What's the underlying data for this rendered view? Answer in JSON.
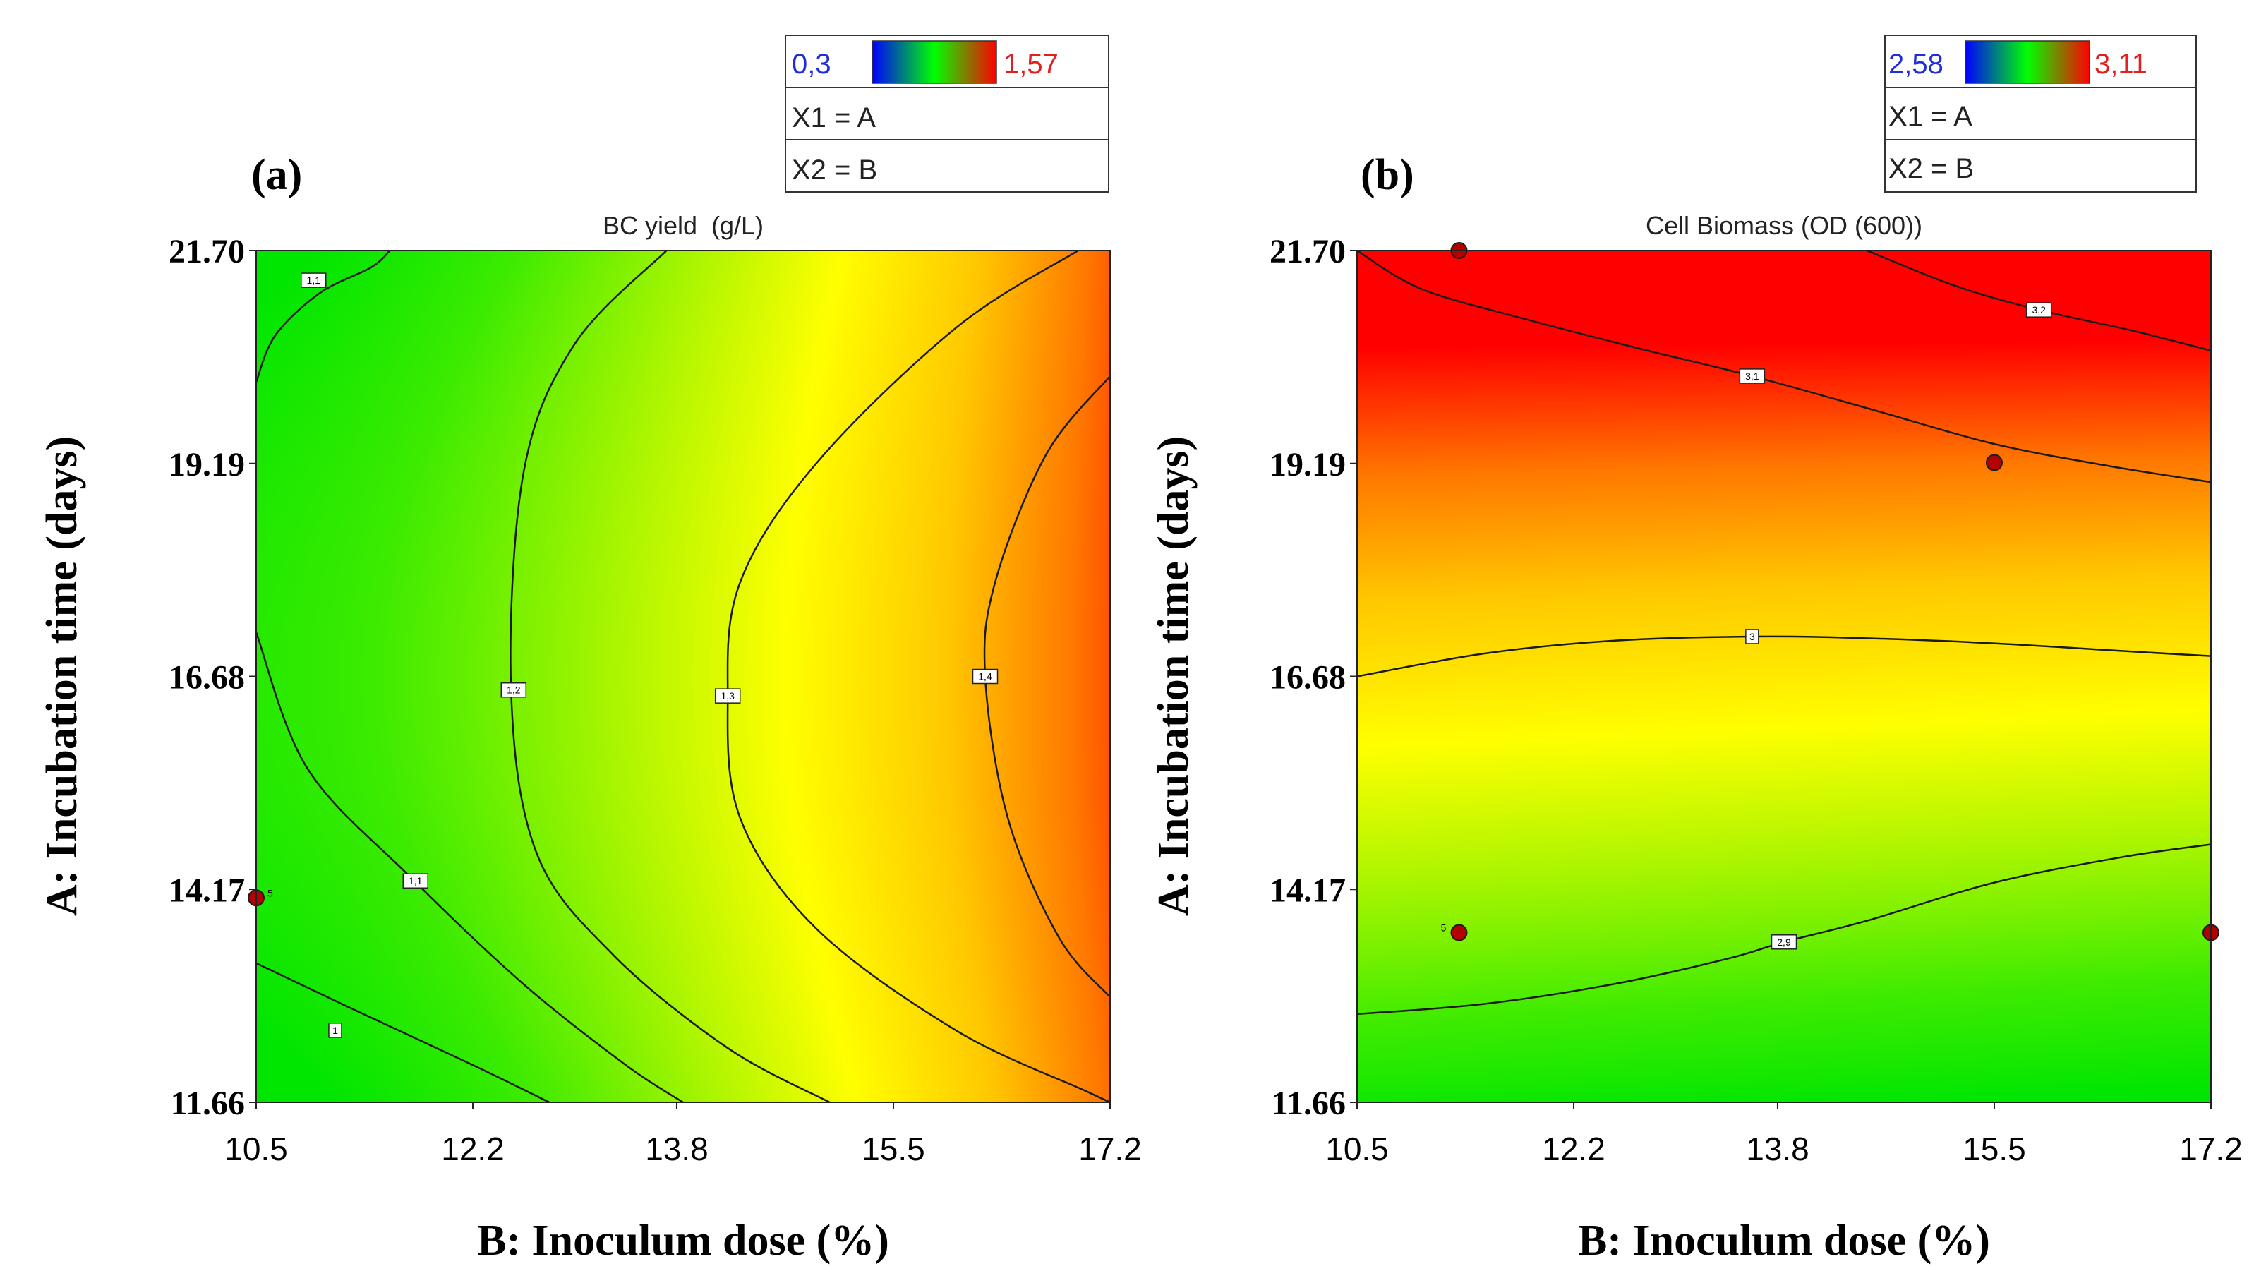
{
  "chart_data": [
    {
      "type": "heatmap",
      "panel_label": "(a)",
      "title": "BC yield  (g/L)",
      "xlabel": "B: Inoculum dose (%)",
      "ylabel": "A: Incubation time (days)",
      "x_ticks": [
        "10.5",
        "12.2",
        "13.8",
        "15.5",
        "17.2"
      ],
      "y_ticks": [
        "11.66",
        "14.17",
        "16.68",
        "19.19",
        "21.70"
      ],
      "xlim": [
        10.5,
        17.2
      ],
      "ylim": [
        11.66,
        21.7
      ],
      "legend": {
        "min_label": "0,3",
        "max_label": "1,57",
        "line1": "X1 = A",
        "line2": "X2 = B",
        "colors": [
          "#0000ff",
          "#00ff00",
          "#ff0000"
        ]
      },
      "contours": [
        {
          "label": "1",
          "points": [
            [
              10.5,
              13.3
            ],
            [
              11.2,
              12.8
            ],
            [
              12.2,
              12.1
            ],
            [
              12.8,
              11.66
            ]
          ],
          "label_at": [
            11.12,
            12.51
          ]
        },
        {
          "label": "1,1",
          "points": [
            [
              10.5,
              17.2
            ],
            [
              10.9,
              15.6
            ],
            [
              11.7,
              14.33
            ],
            [
              12.6,
              13.05
            ],
            [
              13.4,
              12.1
            ],
            [
              13.85,
              11.66
            ]
          ],
          "label_at": [
            11.75,
            14.27
          ]
        },
        {
          "label": "1,1",
          "points": [
            [
              10.5,
              20.15
            ],
            [
              10.65,
              20.7
            ],
            [
              11.0,
              21.2
            ],
            [
              11.4,
              21.5
            ],
            [
              11.55,
              21.7
            ]
          ],
          "label_at": [
            10.95,
            21.35
          ]
        },
        {
          "label": "1,2",
          "points": [
            [
              13.72,
              21.7
            ],
            [
              13.0,
              20.6
            ],
            [
              12.6,
              19.1
            ],
            [
              12.5,
              16.52
            ],
            [
              12.7,
              14.6
            ],
            [
              13.3,
              13.4
            ],
            [
              14.2,
              12.3
            ],
            [
              15.0,
              11.66
            ]
          ],
          "label_at": [
            12.52,
            16.52
          ]
        },
        {
          "label": "1,3",
          "points": [
            [
              16.95,
              21.7
            ],
            [
              16.0,
              20.8
            ],
            [
              14.9,
              19.2
            ],
            [
              14.3,
              17.8
            ],
            [
              14.2,
              16.45
            ],
            [
              14.3,
              15.0
            ],
            [
              14.9,
              13.7
            ],
            [
              16.0,
              12.5
            ],
            [
              17.0,
              11.8
            ],
            [
              17.2,
              11.66
            ]
          ],
          "label_at": [
            14.2,
            16.45
          ]
        },
        {
          "label": "1,4",
          "points": [
            [
              17.2,
              20.22
            ],
            [
              16.7,
              19.3
            ],
            [
              16.3,
              17.8
            ],
            [
              16.22,
              16.68
            ],
            [
              16.4,
              15.0
            ],
            [
              16.8,
              13.6
            ],
            [
              17.2,
              12.9
            ]
          ],
          "label_at": [
            16.22,
            16.68
          ]
        }
      ],
      "design_points": [
        {
          "x": 10.5,
          "y": 14.07,
          "label": "5"
        }
      ]
    },
    {
      "type": "heatmap",
      "panel_label": "(b)",
      "title": "Cell Biomass (OD (600))",
      "xlabel": "B: Inoculum dose (%)",
      "ylabel": "A: Incubation time (days)",
      "x_ticks": [
        "10.5",
        "12.2",
        "13.8",
        "15.5",
        "17.2"
      ],
      "y_ticks": [
        "11.66",
        "14.17",
        "16.68",
        "19.19",
        "21.70"
      ],
      "xlim": [
        10.5,
        17.2
      ],
      "ylim": [
        11.66,
        21.7
      ],
      "legend": {
        "min_label": "2,58",
        "max_label": "3,11",
        "line1": "X1 = A",
        "line2": "X2 = B",
        "colors": [
          "#0000ff",
          "#00ff00",
          "#ff0000"
        ]
      },
      "contours": [
        {
          "label": "2,9",
          "points": [
            [
              10.5,
              12.7
            ],
            [
              11.5,
              12.82
            ],
            [
              12.5,
              13.05
            ],
            [
              13.4,
              13.35
            ],
            [
              13.85,
              13.55
            ],
            [
              14.5,
              13.8
            ],
            [
              15.5,
              14.25
            ],
            [
              16.5,
              14.55
            ],
            [
              17.2,
              14.7
            ]
          ],
          "label_at": [
            13.85,
            13.55
          ]
        },
        {
          "label": "3",
          "points": [
            [
              10.5,
              16.68
            ],
            [
              11.5,
              16.95
            ],
            [
              12.5,
              17.1
            ],
            [
              13.6,
              17.15
            ],
            [
              14.5,
              17.13
            ],
            [
              15.5,
              17.07
            ],
            [
              16.5,
              16.98
            ],
            [
              17.2,
              16.92
            ]
          ],
          "label_at": [
            13.6,
            17.15
          ]
        },
        {
          "label": "3,1",
          "points": [
            [
              10.5,
              21.7
            ],
            [
              11.0,
              21.25
            ],
            [
              11.8,
              20.9
            ],
            [
              12.7,
              20.55
            ],
            [
              13.6,
              20.22
            ],
            [
              14.6,
              19.8
            ],
            [
              15.5,
              19.42
            ],
            [
              16.4,
              19.16
            ],
            [
              17.2,
              18.97
            ]
          ],
          "label_at": [
            13.6,
            20.22
          ]
        },
        {
          "label": "3,2",
          "points": [
            [
              14.5,
              21.7
            ],
            [
              15.2,
              21.28
            ],
            [
              15.85,
              21.0
            ],
            [
              16.6,
              20.75
            ],
            [
              17.2,
              20.52
            ]
          ],
          "label_at": [
            15.85,
            21.0
          ]
        }
      ],
      "design_points": [
        {
          "x": 11.3,
          "y": 21.7,
          "label": ""
        },
        {
          "x": 15.5,
          "y": 19.2,
          "label": ""
        },
        {
          "x": 11.3,
          "y": 13.66,
          "label": "5"
        },
        {
          "x": 17.2,
          "y": 13.66,
          "label": ""
        }
      ]
    }
  ]
}
